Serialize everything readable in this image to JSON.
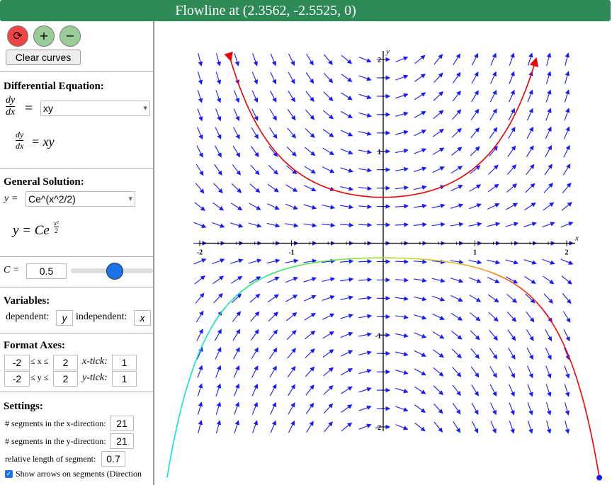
{
  "header": {
    "title": "Flowline at (2.3562, -2.5525, 0)"
  },
  "toolbar": {
    "clear_button": "Clear curves"
  },
  "differential_equation": {
    "heading": "Differential Equation:",
    "lhs_num": "dy",
    "lhs_den": "dx",
    "equals": "=",
    "input": "xy",
    "rendered_num": "dy",
    "rendered_den": "dx",
    "rendered_rhs": "= xy"
  },
  "general_solution": {
    "heading": "General Solution:",
    "lhs": "y =",
    "input": "Ce^(x^2/2)",
    "rendered_lhs": "y = Ce",
    "rendered_exp_num": "x²",
    "rendered_exp_den": "2"
  },
  "constant": {
    "label": "C =",
    "value": 0.5
  },
  "variables": {
    "heading": "Variables:",
    "dependent_label": "dependent:",
    "dependent": "y",
    "independent_label": "independent:",
    "independent": "x"
  },
  "format_axes": {
    "heading": "Format Axes:",
    "xmin": -2,
    "x_between": "≤ x ≤",
    "xmax": 2,
    "xtick_label": "x-tick:",
    "xtick": 1,
    "ymin": -2,
    "y_between": "≤ y ≤",
    "ymax": 2,
    "ytick_label": "y-tick:",
    "ytick": 1
  },
  "settings": {
    "heading": "Settings:",
    "x_segments_label": "# segments in the x-direction:",
    "x_segments": 21,
    "y_segments_label": "# segments in the y-direction:",
    "y_segments": 21,
    "length_label": "relative length of segment:",
    "length": 0.7,
    "arrows_label": "Show arrows on segments (Direction"
  },
  "plot": {
    "x_axis_label": "x",
    "y_axis_label": "y",
    "xtick_labels": [
      "-2",
      "-1",
      "1",
      "2"
    ],
    "ytick_labels": [
      "2",
      "1",
      "-1",
      "-2"
    ]
  }
}
